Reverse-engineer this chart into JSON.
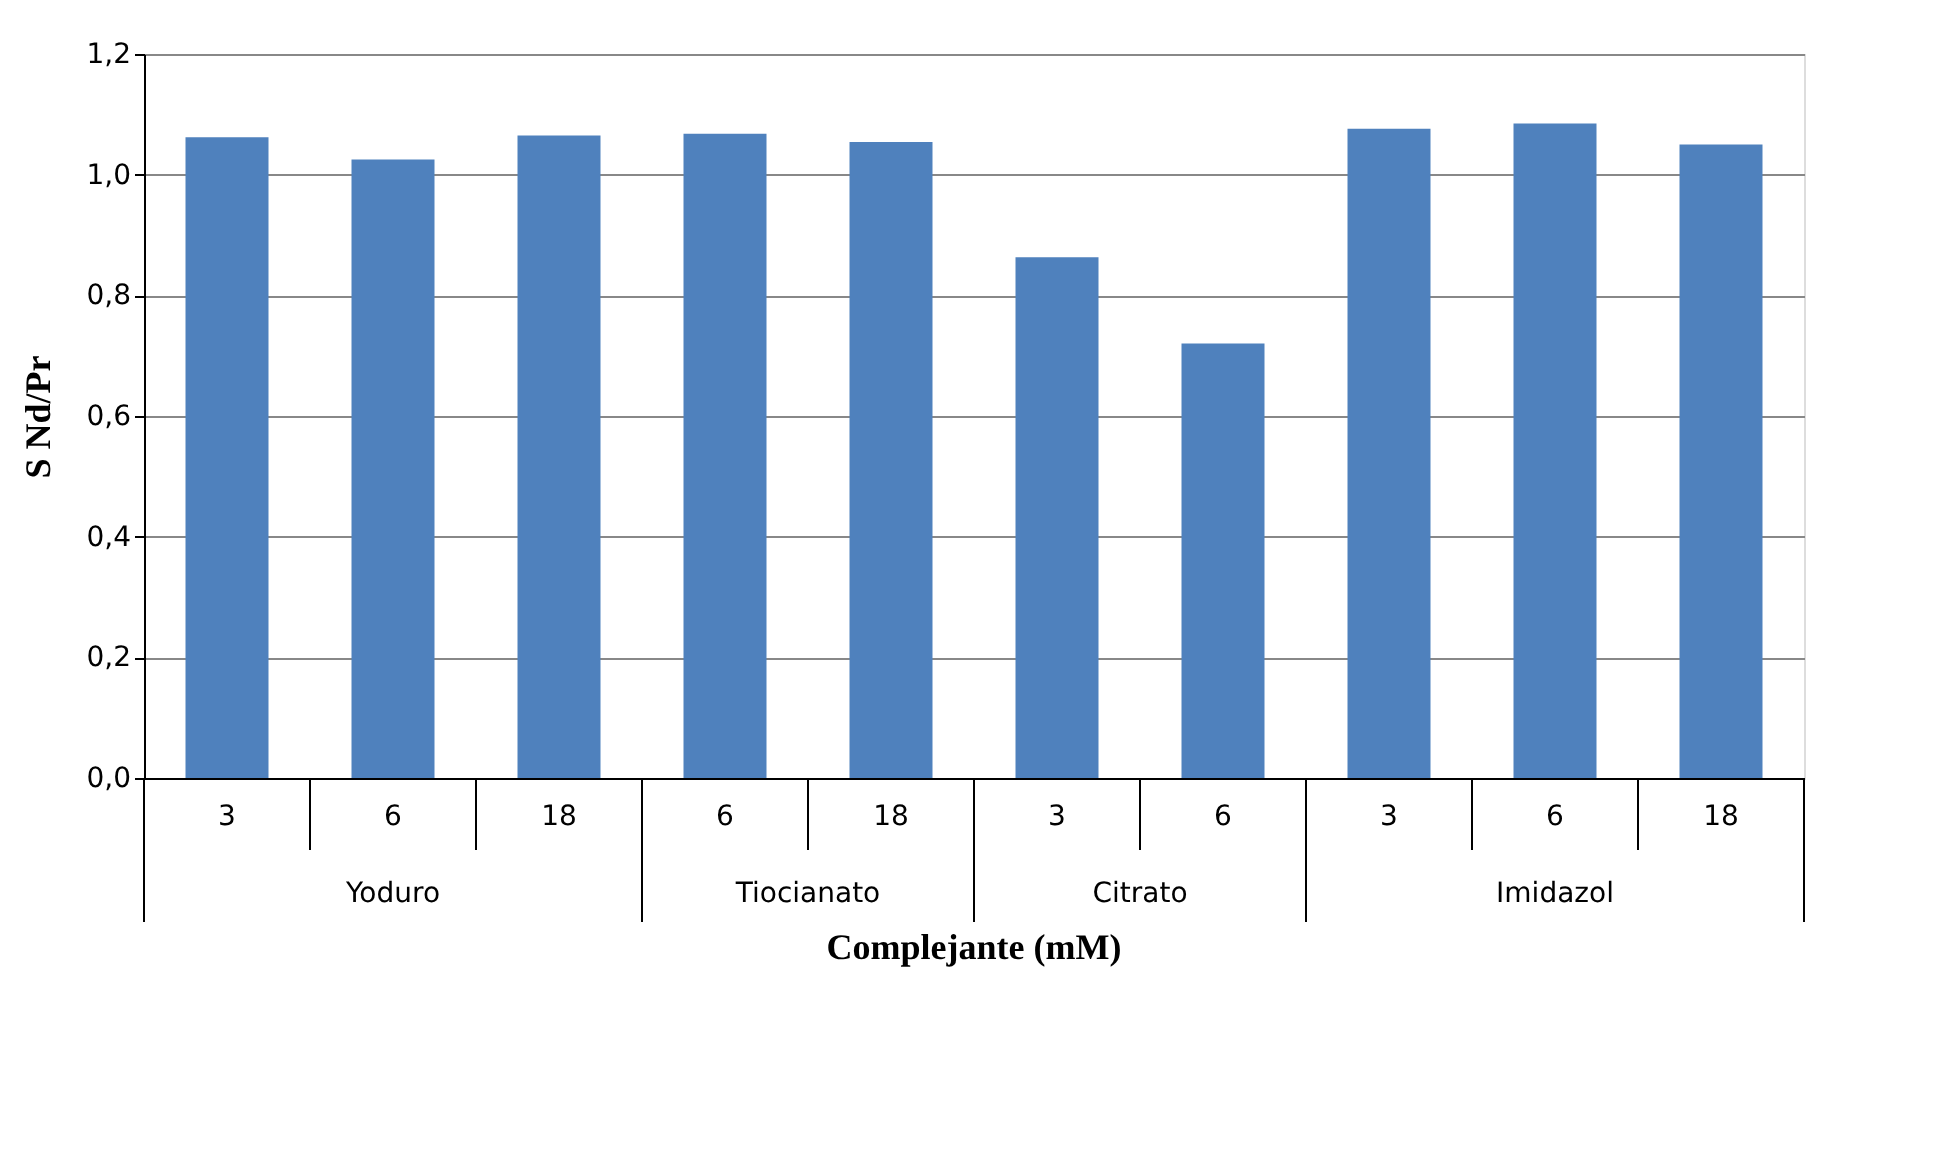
{
  "chart_data": {
    "type": "bar",
    "xlabel": "Complejante (mM)",
    "ylabel": "S Nd/Pr",
    "categories": [
      "3",
      "6",
      "18",
      "6",
      "18",
      "3",
      "6",
      "3",
      "6",
      "18"
    ],
    "annotations": [
      "Yoduro",
      "Tiocianato",
      "Citrato",
      "Imidazol"
    ],
    "series": [
      {
        "color": "#4f81bd",
        "values": [
          1.062,
          1.025,
          1.065,
          1.068,
          1.054,
          0.863,
          0.72,
          1.076,
          1.085,
          1.05
        ]
      }
    ],
    "ylim": [
      0,
      1.2
    ],
    "yticks": [
      {
        "value": 0,
        "label": "0,0"
      },
      {
        "value": 0.2,
        "label": "0,2"
      },
      {
        "value": 0.4,
        "label": "0,4"
      },
      {
        "value": 0.6,
        "label": "0,6"
      },
      {
        "value": 0.8,
        "label": "0,8"
      },
      {
        "value": 1.0,
        "label": "1,0"
      },
      {
        "value": 1.2,
        "label": "1,2"
      }
    ],
    "grid": "y",
    "legend": false
  }
}
